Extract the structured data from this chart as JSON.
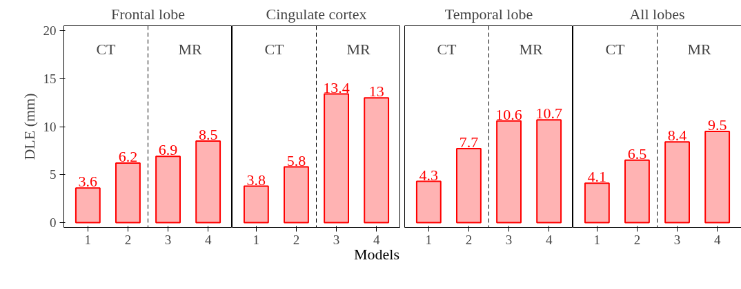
{
  "chart_data": [
    {
      "type": "bar",
      "title": "Frontal lobe",
      "ylabel": "DLE (mm)",
      "x": [
        1,
        2,
        3,
        4
      ],
      "values": [
        3.6,
        6.2,
        6.9,
        8.5
      ],
      "color": "#ffb3b3",
      "xlim": [
        0.4,
        4.6
      ],
      "xticks": [
        1,
        2,
        3,
        4
      ],
      "ylim": [
        -0.5,
        20.5
      ],
      "yticks": [
        0,
        5,
        10,
        15,
        20
      ],
      "data_labels": true,
      "annotations": [
        "CT",
        "MR"
      ],
      "ref_lines": [
        {
          "axis": "x",
          "value": 2.5,
          "line_style": "dashed"
        }
      ],
      "grid": false
    },
    {
      "type": "bar",
      "title": "Cingulate cortex",
      "xlabel": "Models",
      "x": [
        1,
        2,
        3,
        4
      ],
      "values": [
        3.8,
        5.8,
        13.4,
        13
      ],
      "color": "#ffb3b3",
      "xlim": [
        0.4,
        4.6
      ],
      "xticks": [
        1,
        2,
        3,
        4
      ],
      "ylim": [
        -0.5,
        20.5
      ],
      "tick_labels": "x",
      "data_labels": true,
      "annotations": [
        "CT",
        "MR"
      ],
      "ref_lines": [
        {
          "axis": "x",
          "value": 2.5,
          "line_style": "dashed"
        }
      ],
      "grid": false
    },
    {
      "type": "bar",
      "title": "Temporal lobe",
      "x": [
        1,
        2,
        3,
        4
      ],
      "values": [
        4.3,
        7.7,
        10.6,
        10.7
      ],
      "color": "#ffb3b3",
      "xlim": [
        0.4,
        4.6
      ],
      "xticks": [
        1,
        2,
        3,
        4
      ],
      "ylim": [
        -0.5,
        20.5
      ],
      "tick_labels": "x",
      "data_labels": true,
      "annotations": [
        "CT",
        "MR"
      ],
      "ref_lines": [
        {
          "axis": "x",
          "value": 2.5,
          "line_style": "dashed"
        }
      ],
      "grid": false
    },
    {
      "type": "bar",
      "title": "All lobes",
      "x": [
        1,
        2,
        3,
        4
      ],
      "values": [
        4.1,
        6.5,
        8.4,
        9.5
      ],
      "color": "#ffb3b3",
      "xlim": [
        0.4,
        4.6
      ],
      "xticks": [
        1,
        2,
        3,
        4
      ],
      "ylim": [
        -0.5,
        20.5
      ],
      "tick_labels": "x",
      "data_labels": true,
      "annotations": [
        "CT",
        "MR"
      ],
      "ref_lines": [
        {
          "axis": "x",
          "value": 2.5,
          "line_style": "dashed"
        }
      ],
      "grid": false
    }
  ]
}
